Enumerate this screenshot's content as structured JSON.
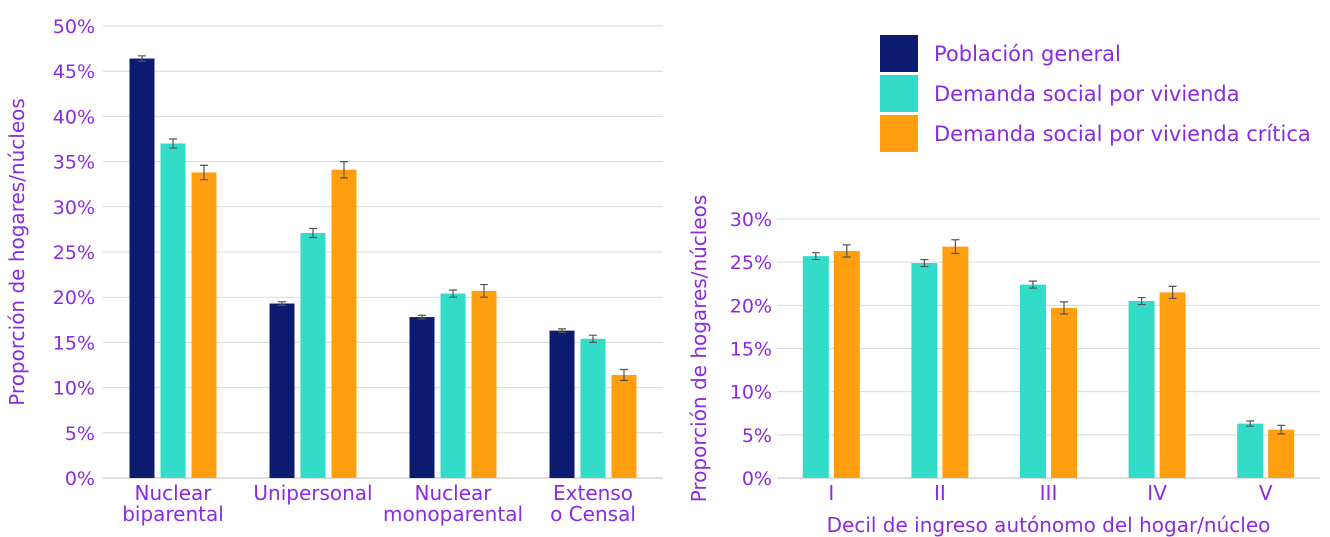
{
  "colors": {
    "general": "#0c1a6f",
    "vivienda": "#33dcc8",
    "critica": "#ff9e0f",
    "text": "#8a2be2"
  },
  "legend": [
    {
      "key": "general",
      "label": "Población general"
    },
    {
      "key": "vivienda",
      "label": "Demanda social por vivienda"
    },
    {
      "key": "critica",
      "label": "Demanda social por vivienda crítica"
    }
  ],
  "chart_data": [
    {
      "type": "bar",
      "ylabel": "Proporción de hogares/núcleos",
      "xlabel": "",
      "ylim": [
        0,
        50
      ],
      "yticks": [
        "0%",
        "5%",
        "10%",
        "15%",
        "20%",
        "25%",
        "30%",
        "35%",
        "40%",
        "45%",
        "50%"
      ],
      "categories": [
        [
          "Nuclear",
          "biparental"
        ],
        [
          "Unipersonal"
        ],
        [
          "Nuclear",
          "monoparental"
        ],
        [
          "Extenso",
          "o Censal"
        ]
      ],
      "series": [
        {
          "name": "Población general",
          "key": "general",
          "values": [
            46.4,
            19.3,
            17.8,
            16.3
          ],
          "errors": [
            0.3,
            0.2,
            0.2,
            0.2
          ]
        },
        {
          "name": "Demanda social por vivienda",
          "key": "vivienda",
          "values": [
            37.0,
            27.1,
            20.4,
            15.4
          ],
          "errors": [
            0.5,
            0.5,
            0.4,
            0.4
          ]
        },
        {
          "name": "Demanda social por vivienda crítica",
          "key": "critica",
          "values": [
            33.8,
            34.1,
            20.7,
            11.4
          ],
          "errors": [
            0.8,
            0.9,
            0.7,
            0.6
          ]
        }
      ]
    },
    {
      "type": "bar",
      "ylabel": "Proporción de hogares/núcleos",
      "xlabel": "Decil de ingreso autónomo del hogar/núcleo",
      "ylim": [
        0,
        30
      ],
      "yticks": [
        "0%",
        "5%",
        "10%",
        "15%",
        "20%",
        "25%",
        "30%"
      ],
      "categories": [
        [
          "I"
        ],
        [
          "II"
        ],
        [
          "III"
        ],
        [
          "IV"
        ],
        [
          "V"
        ]
      ],
      "series": [
        {
          "name": "Demanda social por vivienda",
          "key": "vivienda",
          "values": [
            25.7,
            24.9,
            22.4,
            20.5,
            6.3
          ],
          "errors": [
            0.4,
            0.4,
            0.4,
            0.4,
            0.3
          ]
        },
        {
          "name": "Demanda social por vivienda crítica",
          "key": "critica",
          "values": [
            26.3,
            26.8,
            19.7,
            21.5,
            5.6
          ],
          "errors": [
            0.7,
            0.8,
            0.7,
            0.7,
            0.5
          ]
        }
      ]
    }
  ]
}
